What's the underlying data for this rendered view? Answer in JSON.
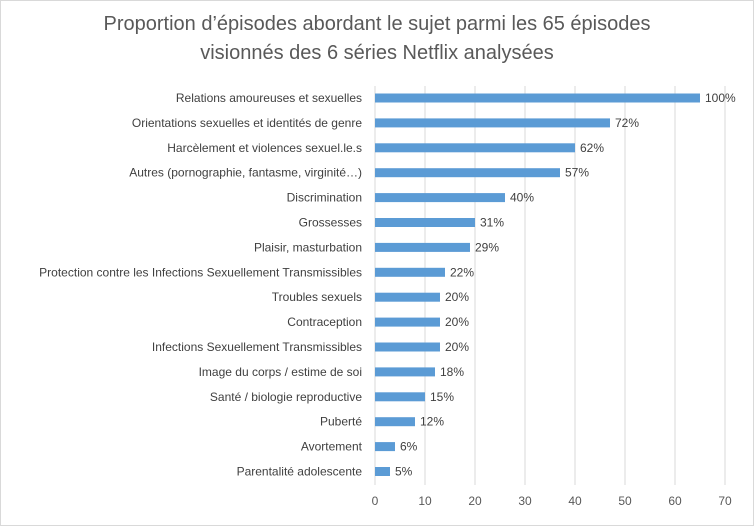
{
  "chart_data": {
    "type": "bar",
    "orientation": "horizontal",
    "title_lines": [
      "Proportion d’épisodes abordant le sujet parmi les 65 épisodes",
      "visionnés des 6 séries Netflix analysées"
    ],
    "categories": [
      "Relations amoureuses et sexuelles",
      "Orientations sexuelles et identités de genre",
      "Harcèlement et violences sexuel.le.s",
      "Autres (pornographie, fantasme, virginité…)",
      "Discrimination",
      "Grossesses",
      "Plaisir, masturbation",
      "Protection contre les Infections Sexuellement Transmissibles",
      "Troubles sexuels",
      "Contraception",
      "Infections Sexuellement Transmissibles",
      "Image du corps / estime de soi",
      "Santé / biologie reproductive",
      "Puberté",
      "Avortement",
      "Parentalité adolescente"
    ],
    "values": [
      65,
      47,
      40,
      37,
      26,
      20,
      19,
      14,
      13,
      13,
      13,
      12,
      10,
      8,
      4,
      3
    ],
    "data_labels": [
      "100%",
      "72%",
      "62%",
      "57%",
      "40%",
      "31%",
      "29%",
      "22%",
      "20%",
      "20%",
      "20%",
      "18%",
      "15%",
      "12%",
      "6%",
      "5%"
    ],
    "xlim": [
      0,
      70
    ],
    "x_ticks": [
      "0",
      "10",
      "20",
      "30",
      "40",
      "50",
      "60",
      "70"
    ],
    "grid": "vertical",
    "bar_color": "#5b9bd5"
  }
}
